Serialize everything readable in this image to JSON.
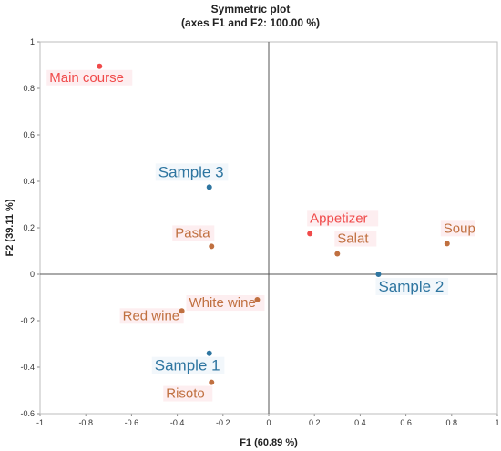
{
  "chart_data": {
    "type": "scatter",
    "title": "Symmetric plot",
    "subtitle": "(axes F1 and F2: 100.00 %)",
    "xlabel": "F1 (60.89 %)",
    "ylabel": "F2 (39.11 %)",
    "xlim": [
      -1,
      1
    ],
    "ylim": [
      -0.6,
      1
    ],
    "x_ticks": [
      "-1",
      "-0.8",
      "-0.6",
      "-0.4",
      "-0.2",
      "0",
      "0.2",
      "0.4",
      "0.6",
      "0.8",
      "1"
    ],
    "y_ticks": [
      "-0.6",
      "-0.4",
      "-0.2",
      "0",
      "0.2",
      "0.4",
      "0.6",
      "0.8",
      "1"
    ],
    "grid": false,
    "points": [
      {
        "label": "Main course",
        "x": -0.74,
        "y": 0.895,
        "group": "columns",
        "color": "#f04a4a"
      },
      {
        "label": "Appetizer",
        "x": 0.18,
        "y": 0.175,
        "group": "columns",
        "color": "#f04a4a"
      },
      {
        "label": "Soup",
        "x": 0.78,
        "y": 0.132,
        "group": "columns",
        "color": "#c07040"
      },
      {
        "label": "Salat",
        "x": 0.3,
        "y": 0.088,
        "group": "columns",
        "color": "#c07040"
      },
      {
        "label": "Pasta",
        "x": -0.25,
        "y": 0.12,
        "group": "columns",
        "color": "#c07040"
      },
      {
        "label": "White wine",
        "x": -0.05,
        "y": -0.11,
        "group": "columns",
        "color": "#c07040"
      },
      {
        "label": "Red wine",
        "x": -0.38,
        "y": -0.158,
        "group": "columns",
        "color": "#c07040"
      },
      {
        "label": "Risoto",
        "x": -0.25,
        "y": -0.465,
        "group": "columns",
        "color": "#c07040"
      },
      {
        "label": "Sample 3",
        "x": -0.26,
        "y": 0.375,
        "group": "rows",
        "color": "#2e75a0"
      },
      {
        "label": "Sample 2",
        "x": 0.48,
        "y": 0.0,
        "group": "rows",
        "color": "#2e75a0"
      },
      {
        "label": "Sample 1",
        "x": -0.26,
        "y": -0.34,
        "group": "rows",
        "color": "#2e75a0"
      }
    ]
  }
}
